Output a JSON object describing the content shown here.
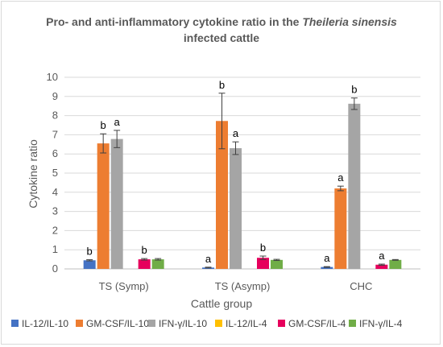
{
  "chart_data": {
    "type": "bar",
    "title_line1": "Pro- and anti-inflammatory cytokine ratio in the ",
    "title_italic": "Theileria sinensis",
    "title_line2": "infected cattle",
    "xlabel": "Cattle group",
    "ylabel": "Cytokine ratio",
    "ylim": [
      0,
      10
    ],
    "yticks": [
      "0",
      "1",
      "2",
      "3",
      "4",
      "5",
      "6",
      "7",
      "8",
      "9",
      "10"
    ],
    "grid": true,
    "legend_position": "bottom",
    "categories": [
      "TS (Symp)",
      "TS (Asymp)",
      "CHC"
    ],
    "series": [
      {
        "name": "IL-12/IL-10",
        "color": "#4472c4",
        "values": [
          0.45,
          0.07,
          0.1
        ],
        "errors": [
          0.03,
          0.02,
          0.02
        ],
        "labels": [
          "b",
          "a",
          "a"
        ]
      },
      {
        "name": "GM-CSF/IL-10",
        "color": "#ed7d31",
        "values": [
          6.55,
          7.72,
          4.2
        ],
        "errors": [
          0.5,
          1.45,
          0.12
        ],
        "labels": [
          "b",
          "b",
          "a"
        ]
      },
      {
        "name": "IFN-γ/IL-10",
        "color": "#a5a5a5",
        "values": [
          6.78,
          6.3,
          8.62
        ],
        "errors": [
          0.45,
          0.33,
          0.3
        ],
        "labels": [
          "a",
          "a",
          "b"
        ]
      },
      {
        "name": "IL-12/IL-4",
        "color": "#ffc000",
        "values": [
          0.0,
          0.0,
          0.0
        ],
        "errors": [
          0,
          0,
          0
        ],
        "labels": [
          "",
          "",
          ""
        ]
      },
      {
        "name": "GM-CSF/IL-4",
        "color": "#e6005c",
        "values": [
          0.5,
          0.58,
          0.22
        ],
        "errors": [
          0.04,
          0.09,
          0.03
        ],
        "labels": [
          "b",
          "b",
          "a"
        ]
      },
      {
        "name": "IFN-γ/IL-4",
        "color": "#70ad47",
        "values": [
          0.5,
          0.47,
          0.47
        ],
        "errors": [
          0.04,
          0.03,
          0.02
        ],
        "labels": [
          "",
          "",
          ""
        ]
      }
    ]
  }
}
